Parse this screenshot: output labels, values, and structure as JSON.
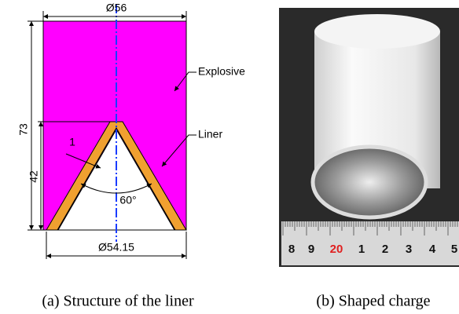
{
  "figure_a": {
    "diameter_top": "Ø56",
    "label_explosive": "Explosive",
    "label_liner": "Liner",
    "height_total": "73",
    "height_liner": "42",
    "thickness": "1",
    "angle": "60°",
    "diameter_bottom": "Ø54.15",
    "caption": "(a) Structure of the liner"
  },
  "figure_b": {
    "ruler_labels": [
      "8",
      "9",
      "20",
      "1",
      "2",
      "3",
      "4",
      "5"
    ],
    "caption": "(b) Shaped charge"
  }
}
